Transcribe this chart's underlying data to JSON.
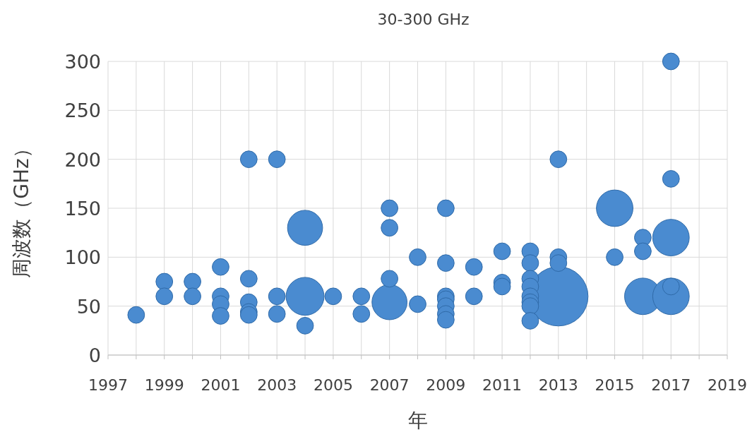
{
  "chart_data": {
    "type": "bubble",
    "title": "30-300 GHz",
    "xlabel": "年",
    "ylabel": "周波数（GHz）",
    "x": [
      1998,
      1999,
      1999,
      2000,
      2000,
      2001,
      2001,
      2001,
      2001,
      2002,
      2002,
      2002,
      2002,
      2002,
      2003,
      2003,
      2003,
      2004,
      2004,
      2004,
      2005,
      2006,
      2006,
      2007,
      2007,
      2007,
      2007,
      2008,
      2008,
      2009,
      2009,
      2009,
      2009,
      2009,
      2009,
      2009,
      2010,
      2010,
      2011,
      2011,
      2011,
      2012,
      2012,
      2012,
      2012,
      2012,
      2012,
      2012,
      2012,
      2013,
      2013,
      2013,
      2013,
      2015,
      2015,
      2016,
      2016,
      2016,
      2017,
      2017,
      2017,
      2017,
      2017
    ],
    "values": [
      41,
      75,
      60,
      75,
      60,
      90,
      60,
      52,
      40,
      200,
      78,
      54,
      44,
      41,
      200,
      60,
      42,
      130,
      60,
      30,
      60,
      60,
      42,
      150,
      130,
      78,
      54,
      100,
      52,
      150,
      94,
      60,
      57,
      50,
      42,
      36,
      90,
      60,
      106,
      74,
      70,
      106,
      94,
      78,
      70,
      60,
      54,
      50,
      35,
      200,
      100,
      94,
      60,
      150,
      100,
      120,
      106,
      60,
      300,
      180,
      120,
      70,
      60
    ],
    "sizes": [
      0.08,
      0.08,
      0.08,
      0.08,
      0.08,
      0.08,
      0.08,
      0.08,
      0.08,
      0.08,
      0.08,
      0.08,
      0.08,
      0.08,
      0.08,
      0.08,
      0.08,
      0.35,
      0.41,
      0.08,
      0.08,
      0.08,
      0.08,
      0.08,
      0.08,
      0.08,
      0.35,
      0.08,
      0.08,
      0.08,
      0.08,
      0.08,
      0.08,
      0.08,
      0.08,
      0.08,
      0.08,
      0.08,
      0.08,
      0.08,
      0.08,
      0.08,
      0.08,
      0.08,
      0.08,
      0.08,
      0.08,
      0.08,
      0.08,
      0.08,
      0.08,
      0.08,
      1,
      0.38,
      0.08,
      0.08,
      0.08,
      0.38,
      0.08,
      0.08,
      0.38,
      0.08,
      0.38
    ],
    "color": "#4a8bd0",
    "xlim": [
      1997,
      2019
    ],
    "xticks": [
      1997,
      {
        "value": 1998,
        "label": null
      },
      1999,
      {
        "value": 2000,
        "label": null
      },
      2001,
      {
        "value": 2002,
        "label": null
      },
      2003,
      {
        "value": 2004,
        "label": null
      },
      2005,
      {
        "value": 2006,
        "label": null
      },
      2007,
      {
        "value": 2008,
        "label": null
      },
      2009,
      {
        "value": 2010,
        "label": null
      },
      2011,
      {
        "value": 2012,
        "label": null
      },
      2013,
      {
        "value": 2014,
        "label": null
      },
      2015,
      {
        "value": 2016,
        "label": null
      },
      2017,
      {
        "value": 2018,
        "label": null
      },
      2019
    ],
    "ylim": [
      0,
      300
    ],
    "yticks": [
      0,
      50,
      100,
      150,
      200,
      250,
      300
    ],
    "grid": true
  }
}
